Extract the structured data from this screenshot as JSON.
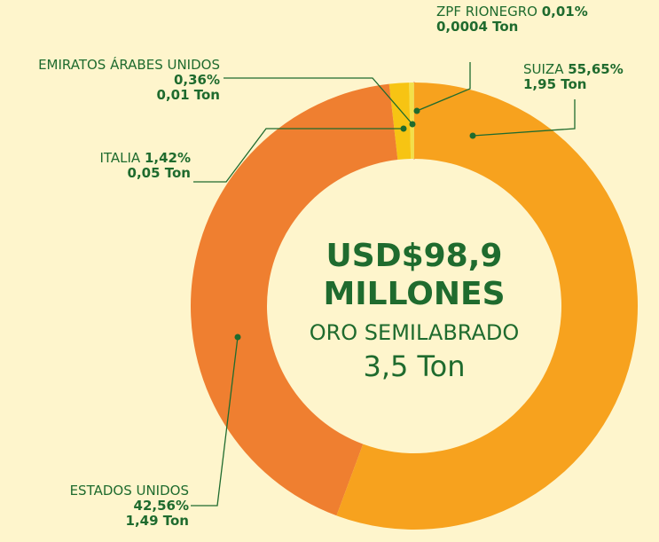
{
  "chart_data": {
    "type": "donut",
    "categories": [
      "SUIZA",
      "ESTADOS UNIDOS",
      "ITALIA",
      "EMIRATOS ÁRABES UNIDOS",
      "ZPF RIONEGRO"
    ],
    "values": [
      55.65,
      42.56,
      1.42,
      0.36,
      0.01
    ],
    "value_labels": [
      "55,65%",
      "42,56%",
      "1,42%",
      "0,36%",
      "0,01%"
    ],
    "tons": [
      1.95,
      1.49,
      0.05,
      0.01,
      0.0004
    ],
    "tons_labels": [
      "1,95 Ton",
      "1,49 Ton",
      "0,05 Ton",
      "0,01 Ton",
      "0,0004 Ton"
    ],
    "colors": [
      "#f7a21e",
      "#ef7f30",
      "#f7c413",
      "#f3df4a",
      "#e8a29a"
    ],
    "annotations": [
      "USD$98,9",
      "MILLONES",
      "ORO SEMILABRADO",
      "3,5 Ton"
    ]
  }
}
